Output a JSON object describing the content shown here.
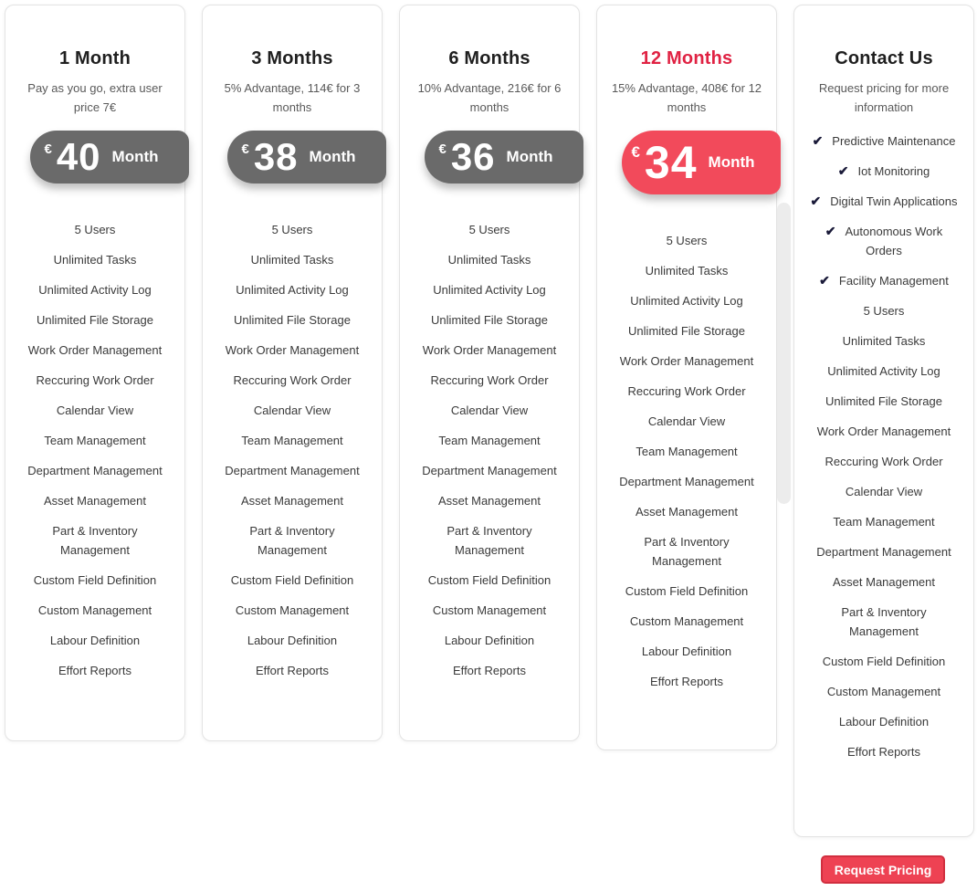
{
  "pricing": {
    "plans": [
      {
        "id": "1-month",
        "title": "1 Month",
        "subtitle": "Pay as you go, extra user price 7€",
        "price": {
          "currency": "€",
          "amount": "40",
          "period": "Month"
        },
        "highlight": false
      },
      {
        "id": "3-months",
        "title": "3 Months",
        "subtitle": "5% Advantage, 114€ for 3 months",
        "price": {
          "currency": "€",
          "amount": "38",
          "period": "Month"
        },
        "highlight": false
      },
      {
        "id": "6-months",
        "title": "6 Months",
        "subtitle": "10% Advantage, 216€ for 6 months",
        "price": {
          "currency": "€",
          "amount": "36",
          "period": "Month"
        },
        "highlight": false
      },
      {
        "id": "12-months",
        "title": "12 Months",
        "subtitle": "15% Advantage, 408€ for 12 months",
        "price": {
          "currency": "€",
          "amount": "34",
          "period": "Month"
        },
        "highlight": true
      },
      {
        "id": "contact-us",
        "title": "Contact Us",
        "subtitle": "Request pricing for more information",
        "highlight": false,
        "checklist": [
          "Predictive Maintenance",
          "Iot Monitoring",
          "Digital Twin Applications",
          "Autonomous Work Orders",
          "Facility Management"
        ]
      }
    ],
    "features_common": [
      "5 Users",
      "Unlimited Tasks",
      "Unlimited Activity Log",
      "Unlimited File Storage",
      "Work Order Management",
      "Reccuring Work Order",
      "Calendar View",
      "Team Management",
      "Department Management",
      "Asset Management",
      "Part & Inventory Management",
      "Custom Field Definition",
      "Custom Management",
      "Labour Definition",
      "Effort Reports"
    ],
    "check_icon": "✔",
    "request_pricing_label": "Request Pricing",
    "colors": {
      "pill_gray": "#6a6a6a",
      "pill_red": "#f24a5b",
      "title_red": "#e02243",
      "button_red": "#ee4253",
      "button_border_red": "#d12f3f",
      "check_navy": "#1a1a39"
    }
  }
}
